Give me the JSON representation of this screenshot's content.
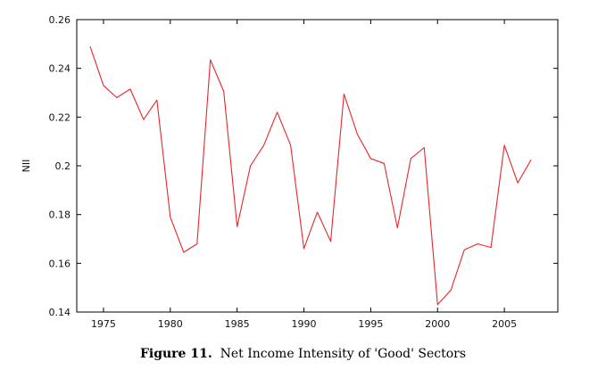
{
  "caption": {
    "figure_label": "Figure 11.",
    "text": "Net Income Intensity of 'Good' Sectors"
  },
  "chart_data": {
    "type": "line",
    "title": "",
    "xlabel": "",
    "ylabel": "NII",
    "xlim": [
      1973,
      2009
    ],
    "ylim": [
      0.14,
      0.26
    ],
    "x_ticks": [
      1975,
      1980,
      1985,
      1990,
      1995,
      2000,
      2005
    ],
    "y_ticks": [
      0.14,
      0.16,
      0.18,
      0.2,
      0.22,
      0.24,
      0.26
    ],
    "y_tick_labels": [
      "0.14",
      "0.16",
      "0.18",
      "0.2",
      "0.22",
      "0.24",
      "0.26"
    ],
    "grid": false,
    "line_color": "#e8262a",
    "series": [
      {
        "x": [
          1974,
          1975,
          1976,
          1977,
          1978,
          1979,
          1980,
          1981,
          1982,
          1983,
          1984,
          1985,
          1986,
          1987,
          1988,
          1989,
          1990,
          1991,
          1992,
          1993,
          1994,
          1995,
          1996,
          1997,
          1998,
          1999,
          2000,
          2001,
          2002,
          2003,
          2004,
          2005,
          2006,
          2007
        ],
        "values": [
          0.249,
          0.233,
          0.228,
          0.2315,
          0.219,
          0.227,
          0.179,
          0.1645,
          0.168,
          0.2435,
          0.2305,
          0.175,
          0.2,
          0.2085,
          0.222,
          0.2085,
          0.166,
          0.181,
          0.169,
          0.2295,
          0.213,
          0.203,
          0.201,
          0.1745,
          0.203,
          0.2075,
          0.143,
          0.149,
          0.1655,
          0.168,
          0.1665,
          0.2085,
          0.193,
          0.2025
        ]
      }
    ]
  }
}
